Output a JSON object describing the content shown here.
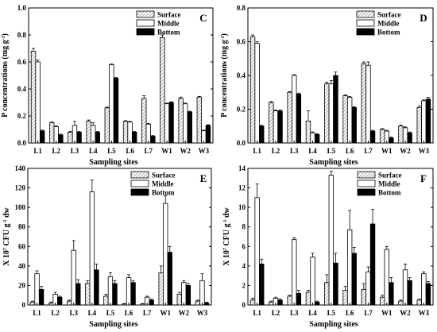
{
  "figure": {
    "hatch_color": "#7a7a7a",
    "fill_colors": {
      "Surface": "hatch",
      "Middle": "#ffffff",
      "Bottom": "#000000"
    }
  },
  "chart_data": [
    {
      "panel": "C",
      "type": "bar",
      "categories": [
        "L1",
        "L2",
        "L3",
        "L4",
        "L5",
        "L6",
        "L7",
        "W1",
        "W2",
        "W3"
      ],
      "xlabel": "Sampling sites",
      "ylabel": "P concentrations (mg g",
      "ylabel_sup": "-1",
      "ylabel_tail": ")",
      "ylim": [
        0,
        1.0
      ],
      "yticks": [
        "0.0",
        "0.2",
        "0.4",
        "0.6",
        "0.8",
        "1.0"
      ],
      "legend_position": "top-right",
      "series": [
        {
          "name": "Surface",
          "values": [
            0.68,
            0.15,
            0.08,
            0.16,
            0.26,
            0.16,
            0.33,
            0.78,
            0.33,
            0.34
          ],
          "errors": [
            0.02,
            0.005,
            0.005,
            0.01,
            0.005,
            0.005,
            0.02,
            0.02,
            0.01,
            0.005
          ]
        },
        {
          "name": "Middle",
          "values": [
            0.6,
            0.12,
            0.13,
            0.13,
            0.58,
            0.155,
            0.14,
            0.29,
            0.29,
            0.09
          ],
          "errors": [
            0.015,
            0.005,
            0.03,
            0.02,
            0.005,
            0.005,
            0.005,
            0.005,
            0.005,
            0.005
          ]
        },
        {
          "name": "Bottom",
          "values": [
            0.09,
            0.06,
            0.08,
            0.08,
            0.48,
            0.08,
            0.05,
            0.3,
            0.23,
            0.13
          ],
          "errors": [
            0.005,
            0.005,
            0.005,
            0.005,
            0.005,
            0.005,
            0.005,
            0.005,
            0.005,
            0.005
          ]
        }
      ]
    },
    {
      "panel": "D",
      "type": "bar",
      "categories": [
        "L1",
        "L2",
        "L3",
        "L4",
        "L5",
        "L6",
        "L7",
        "W1",
        "W2",
        "W3"
      ],
      "xlabel": "Sampling sites",
      "ylabel": "P concentrations (mg g",
      "ylabel_sup": "-1",
      "ylabel_tail": ")",
      "ylim": [
        0,
        0.8
      ],
      "yticks": [
        "0.0",
        "0.2",
        "0.4",
        "0.6",
        "0.8"
      ],
      "legend_position": "top-right",
      "series": [
        {
          "name": "Surface",
          "values": [
            0.63,
            0.24,
            0.3,
            0.13,
            0.35,
            0.28,
            0.47,
            0.08,
            0.1,
            0.21
          ],
          "errors": [
            0.01,
            0.005,
            0.005,
            0.06,
            0.01,
            0.005,
            0.01,
            0.005,
            0.005,
            0.01
          ]
        },
        {
          "name": "Middle",
          "values": [
            0.59,
            0.19,
            0.4,
            0.06,
            0.35,
            0.27,
            0.46,
            0.07,
            0.09,
            0.25
          ],
          "errors": [
            0.01,
            0.005,
            0.005,
            0.005,
            0.02,
            0.005,
            0.02,
            0.005,
            0.005,
            0.005
          ]
        },
        {
          "name": "Bottom",
          "values": [
            0.1,
            0.19,
            0.29,
            0.05,
            0.4,
            0.21,
            0.07,
            0.03,
            0.06,
            0.26
          ],
          "errors": [
            0.005,
            0.005,
            0.005,
            0.005,
            0.02,
            0.005,
            0.005,
            0.005,
            0.005,
            0.01
          ]
        }
      ]
    },
    {
      "panel": "E",
      "type": "bar",
      "categories": [
        "L1",
        "L2",
        "L3",
        "L4",
        "L5",
        "L6",
        "L7",
        "W1",
        "W2",
        "W3"
      ],
      "xlabel": "Sampling sites",
      "ylabel": "X 10",
      "ylabel_sup": "7",
      "ylabel_mid": " CFU g",
      "ylabel_sup2": "-1",
      "ylabel_tail": " dw",
      "ylim": [
        0,
        140
      ],
      "yticks": [
        "0",
        "20",
        "40",
        "60",
        "80",
        "100",
        "120",
        "140"
      ],
      "legend_position": "top-right",
      "series": [
        {
          "name": "Surface",
          "values": [
            3,
            2,
            4,
            22,
            9,
            1,
            1,
            33,
            11,
            4
          ],
          "errors": [
            1,
            1,
            1,
            3,
            2,
            0.5,
            0.5,
            7,
            2,
            1
          ]
        },
        {
          "name": "Middle",
          "values": [
            32,
            11,
            56,
            116,
            29,
            28,
            8,
            104,
            23,
            25
          ],
          "errors": [
            3,
            2,
            10,
            12,
            4,
            3,
            1,
            8,
            2,
            7
          ]
        },
        {
          "name": "Bottom",
          "values": [
            16,
            8,
            22,
            36,
            22,
            23,
            5,
            54,
            20,
            2
          ],
          "errors": [
            3,
            1,
            4,
            6,
            3,
            2,
            1,
            6,
            2,
            1
          ]
        }
      ]
    },
    {
      "panel": "F",
      "type": "bar",
      "categories": [
        "L1",
        "L2",
        "L3",
        "L4",
        "L5",
        "L6",
        "L7",
        "W1",
        "W2",
        "W3"
      ],
      "xlabel": "Sampling sites",
      "ylabel": "X 10",
      "ylabel_sup": "7",
      "ylabel_mid": " CFU g",
      "ylabel_sup2": "-1",
      "ylabel_tail": " dw",
      "ylim": [
        0,
        14
      ],
      "yticks": [
        "0",
        "2",
        "4",
        "6",
        "8",
        "10",
        "12",
        "14"
      ],
      "legend_position": "top-right",
      "series": [
        {
          "name": "Surface",
          "values": [
            0.5,
            0.3,
            0.9,
            1.3,
            2.3,
            1.5,
            1.6,
            0.8,
            0.4,
            0.5
          ],
          "errors": [
            0.2,
            0.1,
            0.1,
            0.2,
            0.8,
            0.4,
            0.6,
            0.2,
            0.1,
            0.1
          ]
        },
        {
          "name": "Middle",
          "values": [
            11,
            0.7,
            6.7,
            4.9,
            13.3,
            7.7,
            3.4,
            5.7,
            3.6,
            3.2
          ],
          "errors": [
            1.4,
            0.1,
            0.2,
            0.4,
            0.4,
            2.0,
            0.5,
            0.3,
            0.6,
            0.2
          ]
        },
        {
          "name": "Bottom",
          "values": [
            4.2,
            0.5,
            1.2,
            0.3,
            4.3,
            5.3,
            8.3,
            2.3,
            2.5,
            2.2
          ],
          "errors": [
            0.5,
            0.1,
            0.3,
            0.1,
            1.0,
            0.6,
            1.5,
            0.5,
            0.3,
            0.2
          ]
        }
      ]
    }
  ]
}
